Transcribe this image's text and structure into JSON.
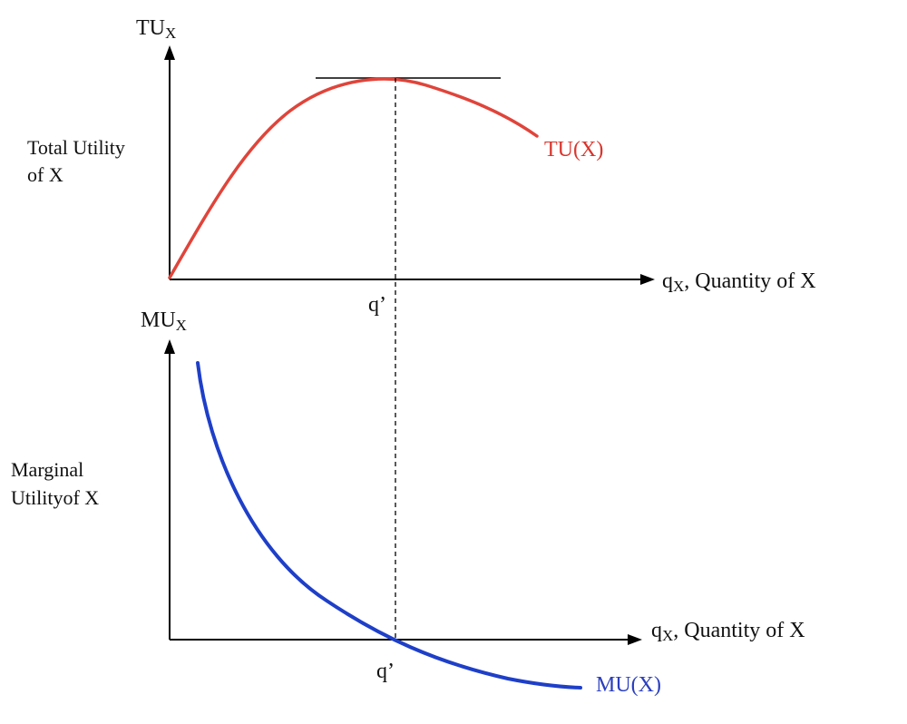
{
  "colors": {
    "axis": "#000000",
    "tu_curve": "#e0443a",
    "mu_curve": "#1e3fc8",
    "tu_label": "#d9342c",
    "mu_label": "#2a3fc0",
    "text": "#111111"
  },
  "top_panel": {
    "y_axis_symbol": "TU",
    "y_axis_subscript": "X",
    "y_axis_title_line1": "Total Utility",
    "y_axis_title_line2": "of X",
    "x_axis_symbol": "q",
    "x_axis_subscript": "X",
    "x_axis_title": ", Quantity of X",
    "point_label": "q’",
    "curve_label": "TU(X)"
  },
  "bottom_panel": {
    "y_axis_symbol": "MU",
    "y_axis_subscript": "X",
    "y_axis_title_line1": "Marginal",
    "y_axis_title_line2": "Utilityof X",
    "x_axis_symbol": "q",
    "x_axis_subscript": "X",
    "x_axis_title": ", Quantity of X",
    "point_label": "q’",
    "curve_label": "MU(X)"
  }
}
